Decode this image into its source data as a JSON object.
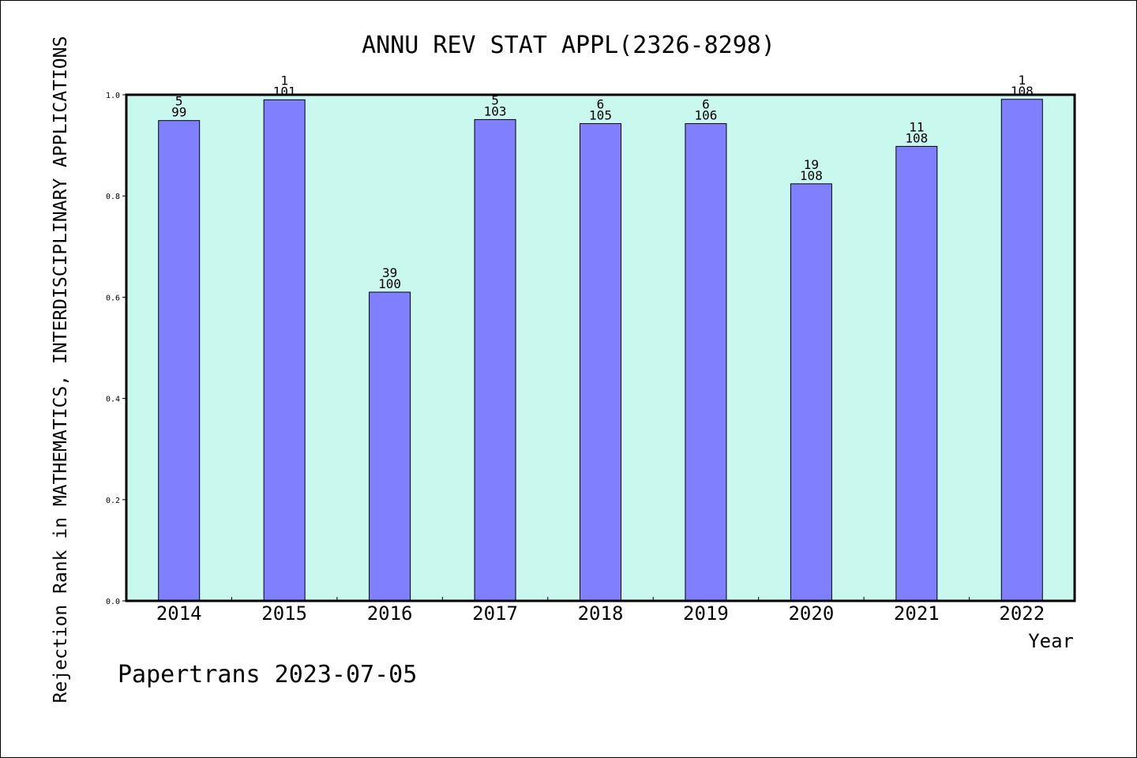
{
  "chart_data": {
    "type": "bar",
    "title": "ANNU REV STAT APPL(2326-8298)",
    "xlabel": "Year",
    "ylabel": "Rejection Rank in MATHEMATICS, INTERDISCIPLINARY APPLICATIONS",
    "footer": "Papertrans 2023-07-05",
    "categories": [
      "2014",
      "2015",
      "2016",
      "2017",
      "2018",
      "2019",
      "2020",
      "2021",
      "2022"
    ],
    "values": [
      0.949,
      0.99,
      0.61,
      0.951,
      0.943,
      0.943,
      0.824,
      0.898,
      0.991
    ],
    "ranks": [
      "5",
      "1",
      "39",
      "5",
      "6",
      "6",
      "19",
      "11",
      "1"
    ],
    "totals": [
      "99",
      "101",
      "100",
      "103",
      "105",
      "106",
      "108",
      "108",
      "108"
    ],
    "ylim": [
      0,
      1.0
    ],
    "yticks": [
      "0.0",
      "0.2",
      "0.4",
      "0.6",
      "0.8",
      "1.0"
    ],
    "grid": false,
    "colors": {
      "bar": "#8080ff",
      "plot_background": "#c8f8ee",
      "axis": "#000000"
    }
  }
}
